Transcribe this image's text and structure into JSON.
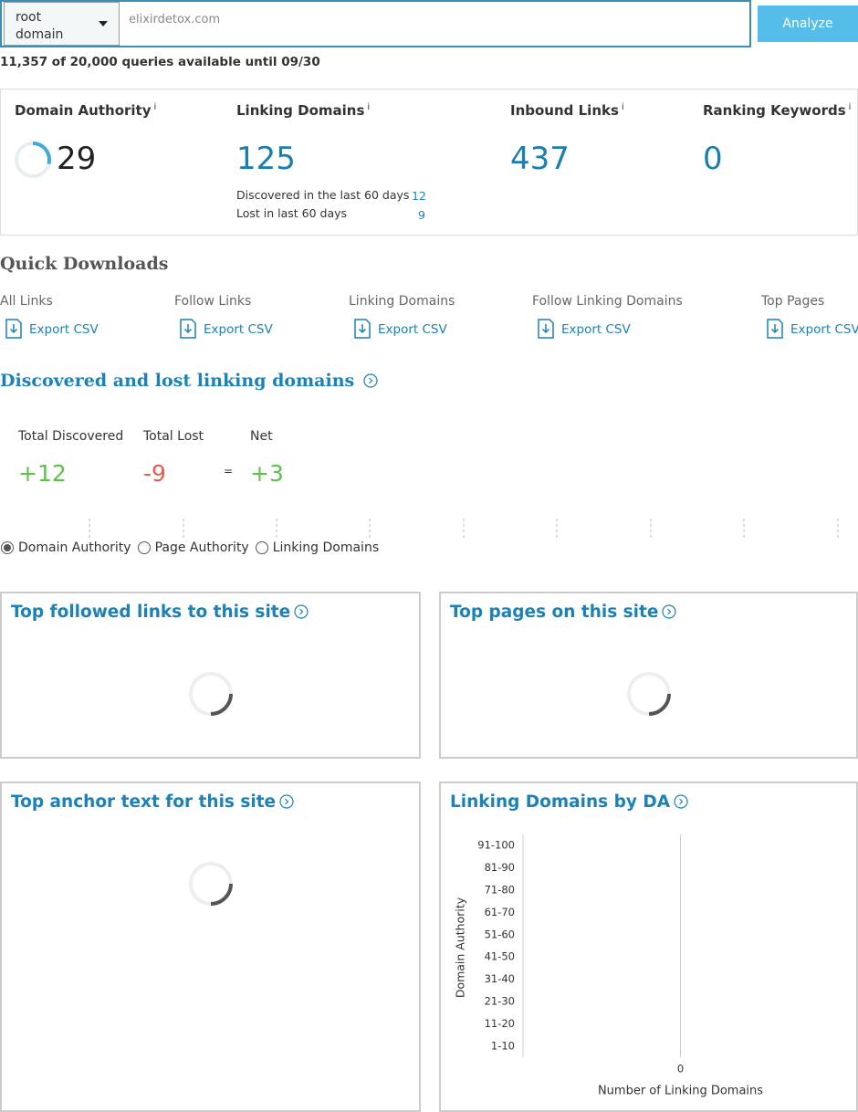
{
  "search": {
    "scope": "root domain",
    "query": "elixirdetox.com",
    "button": "Analyze",
    "quota": "11,357 of 20,000 queries available until 09/30"
  },
  "metrics": [
    {
      "label": "Domain Authority",
      "info": "i",
      "value": 29
    },
    {
      "label": "Linking Domains",
      "info": "i",
      "value": 125,
      "discovered_label": "Discovered in the last 60 days",
      "discovered": 12,
      "lost_label": "Lost in last 60 days",
      "lost": 9
    },
    {
      "label": "Inbound Links",
      "info": "i",
      "value": 437
    },
    {
      "label": "Ranking Keywords",
      "info": "i",
      "value": 0
    }
  ],
  "quick_downloads": {
    "title": "Quick Downloads",
    "items": [
      {
        "label": "All Links",
        "action": "Export CSV"
      },
      {
        "label": "Follow Links",
        "action": "Export CSV"
      },
      {
        "label": "Linking Domains",
        "action": "Export CSV"
      },
      {
        "label": "Follow Linking Domains",
        "action": "Export CSV"
      },
      {
        "label": "Top Pages",
        "action": "Export CSV"
      }
    ]
  },
  "discovered_lost": {
    "title": "Discovered and lost linking domains",
    "stats": [
      {
        "label": "Total Discovered",
        "value": "+12"
      },
      {
        "label": "Total Lost",
        "value": "-9"
      },
      {
        "label": "Net",
        "value": "+3"
      }
    ],
    "equals": "=",
    "options": [
      "Domain Authority",
      "Page Authority",
      "Linking Domains"
    ],
    "selected": 0
  },
  "panels": [
    {
      "title": "Top followed links to this site"
    },
    {
      "title": "Top pages on this site"
    },
    {
      "title": "Top anchor text for this site"
    },
    {
      "title": "Linking Domains by DA"
    }
  ],
  "chart_data": {
    "type": "hbar",
    "categories": [
      "91-100",
      "81-90",
      "71-80",
      "61-70",
      "51-60",
      "41-50",
      "31-40",
      "21-30",
      "11-20",
      "1-10"
    ],
    "values": [
      0,
      0,
      0,
      0,
      0,
      0,
      0,
      0,
      0,
      0
    ],
    "color": "#1a82b8",
    "xlim": [
      -1,
      1
    ],
    "xticks": [
      0
    ],
    "xlabel": "Number of Linking Domains",
    "ylabel": "Domain Authority"
  }
}
